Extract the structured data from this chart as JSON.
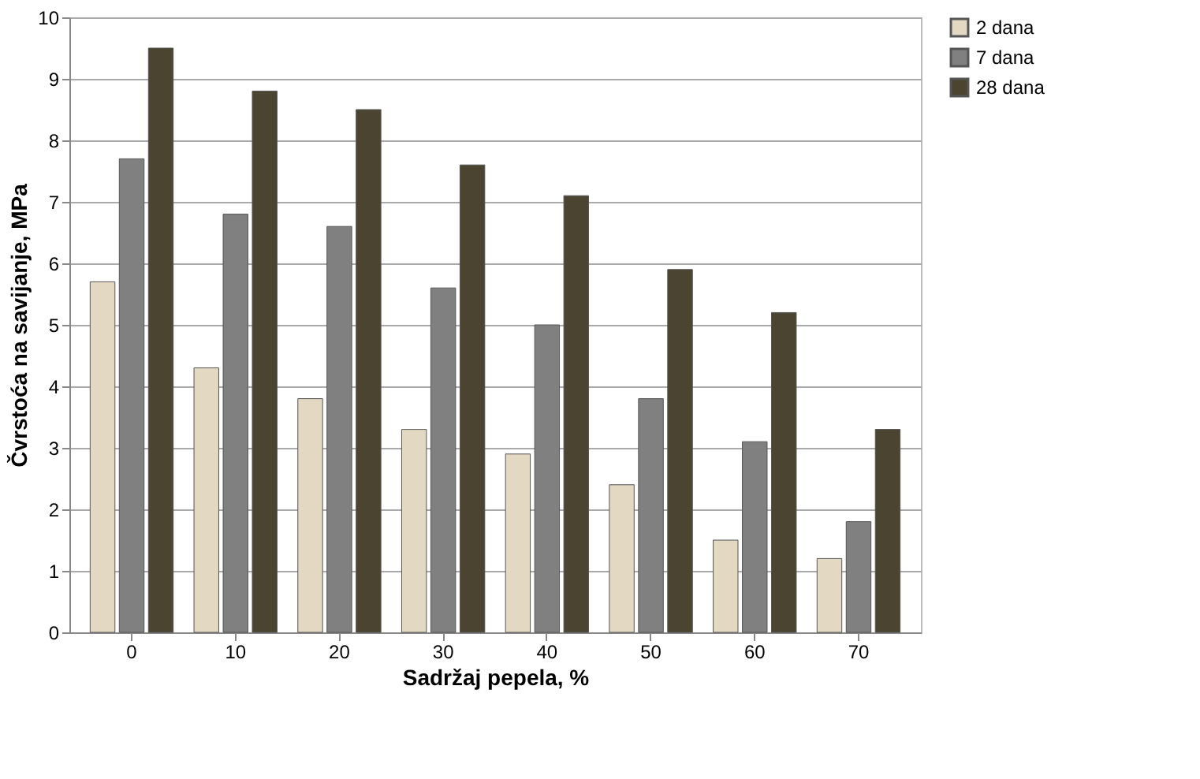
{
  "chart_data": {
    "type": "bar",
    "xlabel": "Sadržaj pepela, %",
    "ylabel": "Čvrstoća na savijanje, MPa",
    "categories": [
      "0",
      "10",
      "20",
      "30",
      "40",
      "50",
      "60",
      "70"
    ],
    "series": [
      {
        "name": "2 dana",
        "color": "#e3d9c2",
        "values": [
          5.7,
          4.3,
          3.8,
          3.3,
          2.9,
          2.4,
          1.5,
          1.2
        ]
      },
      {
        "name": "7 dana",
        "color": "#808080",
        "values": [
          7.7,
          6.8,
          6.6,
          5.6,
          5.0,
          3.8,
          3.1,
          1.8
        ]
      },
      {
        "name": "28 dana",
        "color": "#4a4430",
        "values": [
          9.5,
          8.8,
          8.5,
          7.6,
          7.1,
          5.9,
          5.2,
          3.3
        ]
      }
    ],
    "ylim": [
      0,
      10
    ],
    "yticks": [
      0,
      1,
      2,
      3,
      4,
      5,
      6,
      7,
      8,
      9,
      10
    ],
    "grid": "y",
    "legend": "right"
  }
}
